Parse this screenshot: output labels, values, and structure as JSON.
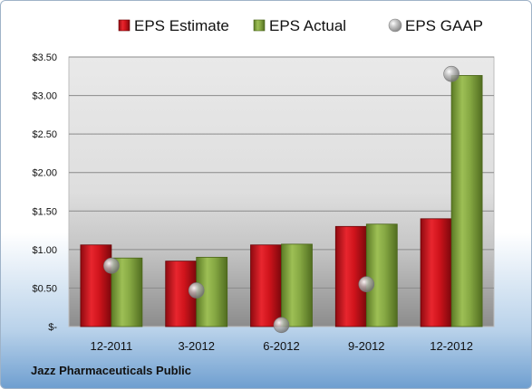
{
  "company_name": "Jazz Pharmaceuticals Public",
  "chart_data": {
    "type": "bar",
    "categories": [
      "12-2011",
      "3-2012",
      "6-2012",
      "9-2012",
      "12-2012"
    ],
    "series": [
      {
        "name": "EPS Estimate",
        "kind": "bar",
        "color": "#d0141c",
        "values": [
          1.06,
          0.85,
          1.06,
          1.3,
          1.4
        ]
      },
      {
        "name": "EPS Actual",
        "kind": "bar",
        "color": "#8aab45",
        "values": [
          0.89,
          0.9,
          1.07,
          1.33,
          3.26
        ]
      },
      {
        "name": "EPS GAAP",
        "kind": "marker",
        "color": "#a8a8a8",
        "values": [
          0.79,
          0.47,
          0.02,
          0.55,
          3.28
        ]
      }
    ],
    "ylim": [
      0,
      3.5
    ],
    "yticks": [
      {
        "value": 3.5,
        "label": "$3.50"
      },
      {
        "value": 3.0,
        "label": "$3.00"
      },
      {
        "value": 2.5,
        "label": "$2.50"
      },
      {
        "value": 2.0,
        "label": "$2.00"
      },
      {
        "value": 1.5,
        "label": "$1.50"
      },
      {
        "value": 1.0,
        "label": "$1.00"
      },
      {
        "value": 0.5,
        "label": "$0.50"
      },
      {
        "value": 0,
        "label": "$-"
      }
    ],
    "grid": true,
    "legend_position": "top"
  }
}
